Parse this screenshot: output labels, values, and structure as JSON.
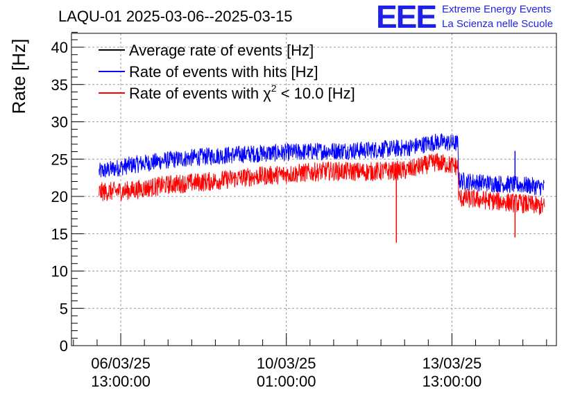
{
  "chart_data": {
    "type": "line",
    "title": "LAQU-01 2025-03-06--2025-03-15",
    "ylabel": "Rate [Hz]",
    "xlabel": "",
    "ylim": [
      0,
      42
    ],
    "yticks": [
      0,
      5,
      10,
      15,
      20,
      25,
      30,
      35,
      40
    ],
    "x_unit": "hours since 2025-03-05 12:00",
    "xlim": [
      0,
      246
    ],
    "xticks": [
      {
        "x": 25,
        "label_date": "06/03/25",
        "label_time": "13:00:00"
      },
      {
        "x": 109,
        "label_date": "10/03/25",
        "label_time": "01:00:00"
      },
      {
        "x": 193,
        "label_date": "13/03/25",
        "label_time": "13:00:00"
      }
    ],
    "grid": true,
    "legend": {
      "placement": "top-left",
      "entries": [
        {
          "label": "Average rate of events [Hz]",
          "color": "#000000"
        },
        {
          "label": "Rate of events with hits [Hz]",
          "color": "#0000ff"
        },
        {
          "label_pre": "Rate of events with ",
          "label_chi": "χ",
          "label_sup": "2",
          "label_post": " < 10.0 [Hz]",
          "color": "#ff0000"
        }
      ]
    },
    "series": [
      {
        "name": "Rate of events with hits [Hz]",
        "color": "#0000ff",
        "noise": 1.2,
        "x": [
          14,
          30,
          50,
          70,
          90,
          110,
          130,
          150,
          170,
          185,
          196,
          196.5,
          210,
          230,
          240
        ],
        "values": [
          23.3,
          24.2,
          24.9,
          25.4,
          25.7,
          25.9,
          26.1,
          26.2,
          26.5,
          27.3,
          27.1,
          22.1,
          21.8,
          21.5,
          21.2
        ],
        "spikes": [
          {
            "x": 225,
            "value": 26.1
          }
        ]
      },
      {
        "name": "Rate of events with χ2 < 10.0 [Hz]",
        "color": "#ff0000",
        "noise": 1.3,
        "x": [
          14,
          30,
          50,
          70,
          90,
          110,
          130,
          150,
          170,
          185,
          196,
          196.5,
          210,
          230,
          240
        ],
        "values": [
          20.6,
          20.8,
          21.6,
          22.0,
          22.6,
          23.0,
          23.4,
          23.3,
          23.5,
          24.6,
          24.0,
          19.8,
          19.5,
          19.0,
          18.6
        ],
        "spikes": [
          {
            "x": 164.8,
            "value": 13.8
          },
          {
            "x": 225,
            "value": 14.5
          }
        ]
      }
    ]
  },
  "logo": {
    "mark": "EEE",
    "line1": "Extreme Energy Events",
    "line2": "La Scienza nelle Scuole"
  }
}
